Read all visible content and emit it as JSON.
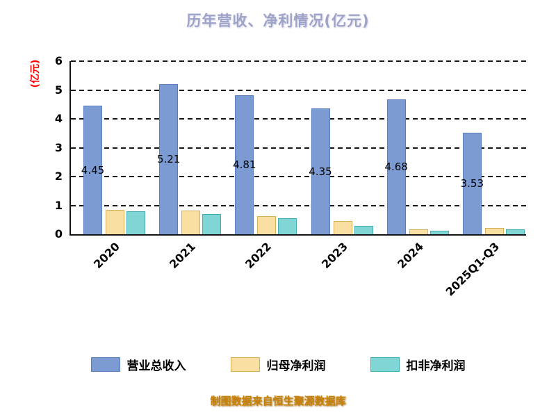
{
  "footer": "制图数据来自恒生聚源数据库",
  "chart_data": {
    "type": "bar",
    "title": "历年营收、净利情况(亿元)",
    "ylabel": "(亿元)",
    "xlabel": "",
    "categories": [
      "2020",
      "2021",
      "2022",
      "2023",
      "2024",
      "2025Q1-Q3"
    ],
    "series": [
      {
        "name": "营业总收入",
        "color": "#7d9bd3",
        "border": "#5a7fbd",
        "values": [
          4.45,
          5.21,
          4.81,
          4.35,
          4.68,
          3.53
        ],
        "labels": [
          "4.45",
          "5.21",
          "4.81",
          "4.35",
          "4.68",
          "3.53"
        ]
      },
      {
        "name": "归母净利润",
        "color": "#f9dfa2",
        "border": "#d9ae58",
        "values": [
          0.85,
          0.83,
          0.62,
          0.46,
          0.16,
          0.21
        ],
        "labels": []
      },
      {
        "name": "扣非净利润",
        "color": "#80d6d4",
        "border": "#44adad",
        "values": [
          0.79,
          0.71,
          0.55,
          0.3,
          0.13,
          0.16
        ],
        "labels": []
      }
    ],
    "ylim": [
      0,
      6
    ],
    "yticks": [
      0,
      1,
      2,
      3,
      4,
      5,
      6
    ],
    "grid": "horizontal-dashed",
    "legend_position": "bottom"
  }
}
